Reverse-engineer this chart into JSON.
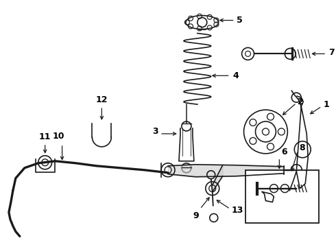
{
  "bg_color": "#ffffff",
  "line_color": "#1a1a1a",
  "lw": 1.2,
  "fig_w": 4.9,
  "fig_h": 3.6,
  "dpi": 100
}
